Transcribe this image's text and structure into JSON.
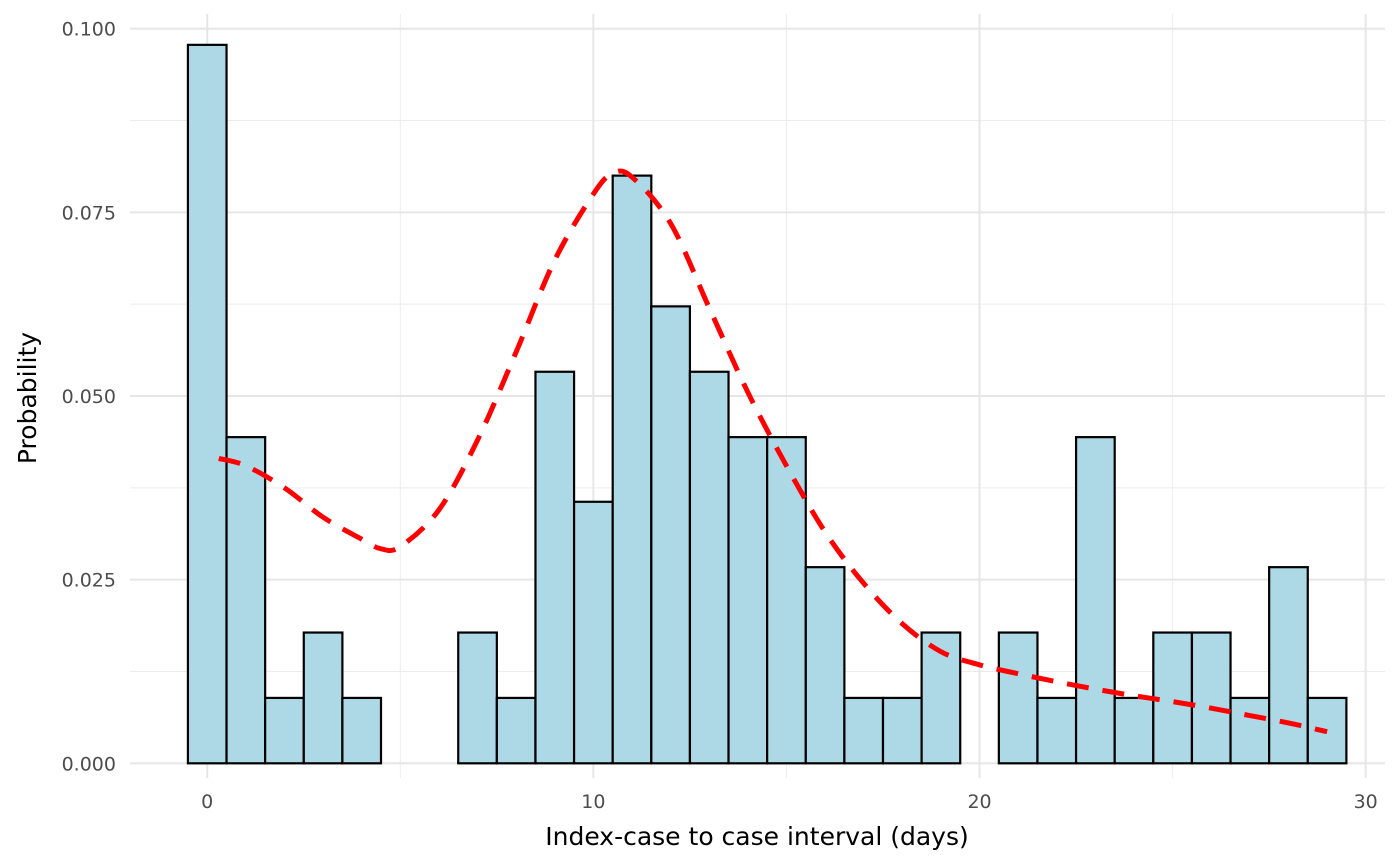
{
  "chart_data": {
    "type": "bar",
    "xlabel": "Index-case to case interval (days)",
    "ylabel": "Probability",
    "xlim": [
      -2,
      30.5
    ],
    "ylim": [
      -0.002,
      0.102
    ],
    "x_ticks": [
      0,
      10,
      20,
      30
    ],
    "y_ticks": [
      0.0,
      0.025,
      0.05,
      0.075,
      0.1
    ],
    "y_tick_labels": [
      "0.000",
      "0.025",
      "0.050",
      "0.075",
      "0.100"
    ],
    "grid": true,
    "bin_width": 1,
    "bars": {
      "x": [
        0,
        1,
        2,
        3,
        4,
        5,
        6,
        7,
        8,
        9,
        10,
        11,
        12,
        13,
        14,
        15,
        16,
        17,
        18,
        19,
        20,
        21,
        22,
        23,
        24,
        25,
        26,
        27,
        28,
        29
      ],
      "values": [
        0.0978,
        0.0444,
        0.0089,
        0.0178,
        0.0089,
        0.0,
        0.0,
        0.0178,
        0.0089,
        0.0533,
        0.0356,
        0.08,
        0.0622,
        0.0533,
        0.0444,
        0.0444,
        0.0267,
        0.0089,
        0.0089,
        0.0178,
        0.0,
        0.0178,
        0.0089,
        0.0444,
        0.0089,
        0.0178,
        0.0178,
        0.0089,
        0.0267,
        0.0089
      ],
      "fill": "#add8e6",
      "stroke": "#000000"
    },
    "fit_line": {
      "style": "dashed",
      "color": "#ff0000",
      "x": [
        0.3,
        1,
        2,
        3,
        4,
        4.5,
        5,
        6,
        7,
        8,
        9,
        10,
        10.5,
        11,
        12,
        13,
        14,
        15,
        16,
        17,
        18,
        19,
        20,
        21,
        22,
        23,
        24,
        25,
        26,
        27,
        28,
        29
      ],
      "y": [
        0.0415,
        0.0405,
        0.0375,
        0.0335,
        0.0305,
        0.0292,
        0.0295,
        0.0345,
        0.044,
        0.056,
        0.0685,
        0.0775,
        0.0803,
        0.0798,
        0.0735,
        0.062,
        0.0505,
        0.0405,
        0.0315,
        0.0245,
        0.019,
        0.0152,
        0.0134,
        0.0122,
        0.0111,
        0.0101,
        0.0092,
        0.0084,
        0.0075,
        0.0065,
        0.0055,
        0.0043
      ]
    }
  }
}
